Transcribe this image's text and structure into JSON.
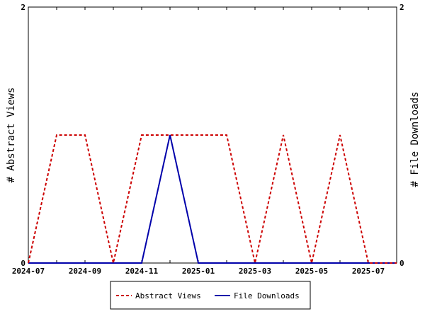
{
  "chart_data": {
    "type": "line",
    "x": [
      "2024-07",
      "2024-08",
      "2024-09",
      "2024-10",
      "2024-11",
      "2024-12",
      "2025-01",
      "2025-02",
      "2025-03",
      "2025-04",
      "2025-05",
      "2025-06",
      "2025-07",
      "2025-08"
    ],
    "x_tick_labels": [
      "2024-07",
      "2024-09",
      "2024-11",
      "2025-01",
      "2025-03",
      "2025-05",
      "2025-07"
    ],
    "series": [
      {
        "name": "Abstract Views",
        "axis": "left",
        "color": "#cc0000",
        "style": "dashed",
        "values": [
          0,
          1,
          1,
          0,
          1,
          1,
          1,
          1,
          0,
          1,
          0,
          1,
          0,
          0
        ]
      },
      {
        "name": "File Downloads",
        "axis": "right",
        "color": "#0000aa",
        "style": "solid",
        "values": [
          0,
          0,
          0,
          0,
          0,
          1,
          0,
          0,
          0,
          0,
          0,
          0,
          0,
          0
        ]
      }
    ],
    "ylabel": "# Abstract Views",
    "ylabel_right": "# File Downloads",
    "ylim": [
      0,
      2
    ],
    "ylim_right": [
      0,
      2
    ],
    "y_ticks": [
      "0",
      "2"
    ],
    "y_ticks_right": [
      "0",
      "2"
    ],
    "grid": false,
    "legend_position": "bottom"
  }
}
